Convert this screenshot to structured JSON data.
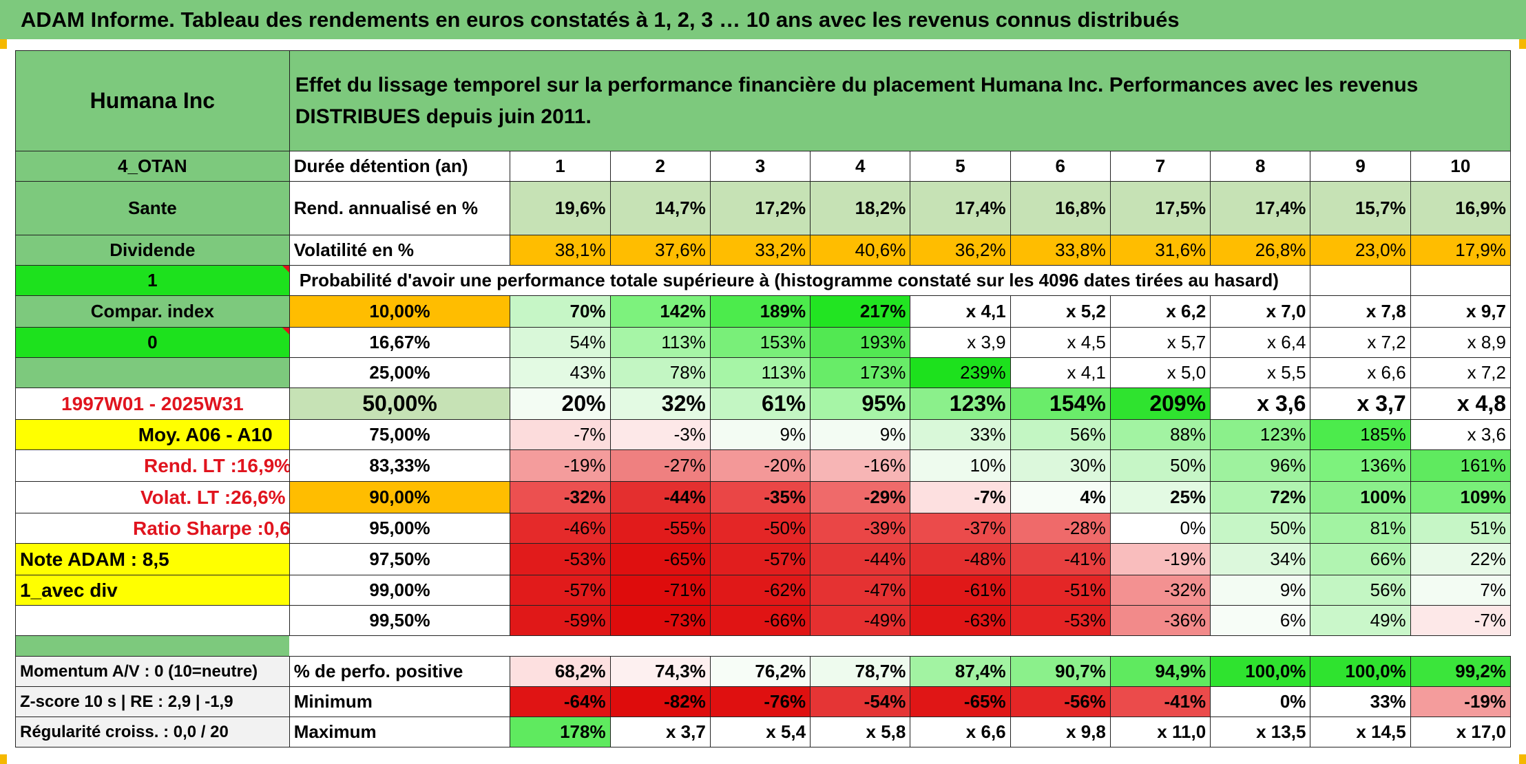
{
  "title": "ADAM Informe. Tableau des rendements en euros constatés à 1, 2, 3 … 10 ans avec les revenus connus distribués",
  "header": {
    "asset_name": "Humana Inc",
    "description": "Effet du lissage temporel sur la performance financière du placement Humana Inc. Performances avec les revenus DISTRIBUES depuis juin 2011."
  },
  "side": {
    "code": "4_OTAN",
    "sector": "Sante",
    "dividend": "Dividende",
    "flag1": "1",
    "compar_index": "Compar. index",
    "flag0": "0",
    "period": "1997W01 - 2025W31",
    "moy": "Moy. A06 - A10",
    "rend_lt_label": "Rend. LT :",
    "rend_lt_value": "16,9%",
    "volat_lt_label": "Volat. LT :",
    "volat_lt_value": "26,6%",
    "sharpe_label": "Ratio Sharpe :",
    "sharpe_value": "0,6",
    "note": "Note ADAM : 8,5",
    "avec_div": "1_avec div",
    "momentum": "Momentum A/V : 0 (10=neutre)",
    "zscore": "Z-score 10 s | RE : 2,9 | -1,9",
    "regularite": "Régularité croiss. : 0,0 / 20"
  },
  "labels": {
    "duree": "Durée détention (an)",
    "rend": "Rend. annualisé en %",
    "volat": "Volatilité en %",
    "proba": "Probabilité d'avoir une performance totale supérieure à (histogramme constaté sur les 4096 dates tirées au hasard)",
    "perf_pos": "% de perfo. positive",
    "minimum": "Minimum",
    "maximum": "Maximum"
  },
  "years": [
    "1",
    "2",
    "3",
    "4",
    "5",
    "6",
    "7",
    "8",
    "9",
    "10"
  ],
  "rend_values": [
    "19,6%",
    "14,7%",
    "17,2%",
    "18,2%",
    "17,4%",
    "16,8%",
    "17,5%",
    "17,4%",
    "15,7%",
    "16,9%"
  ],
  "volat_values": [
    "38,1%",
    "37,6%",
    "33,2%",
    "40,6%",
    "36,2%",
    "33,8%",
    "31,6%",
    "26,8%",
    "23,0%",
    "17,9%"
  ],
  "quantiles": [
    {
      "q": "10,00%",
      "values": [
        "70%",
        "142%",
        "189%",
        "217%",
        "x 4,1",
        "x 5,2",
        "x 6,2",
        "x 7,0",
        "x 7,8",
        "x 9,7"
      ]
    },
    {
      "q": "16,67%",
      "values": [
        "54%",
        "113%",
        "153%",
        "193%",
        "x 3,9",
        "x 4,5",
        "x 5,7",
        "x 6,4",
        "x 7,2",
        "x 8,9"
      ]
    },
    {
      "q": "25,00%",
      "values": [
        "43%",
        "78%",
        "113%",
        "173%",
        "239%",
        "x 4,1",
        "x 5,0",
        "x 5,5",
        "x 6,6",
        "x 7,2"
      ]
    },
    {
      "q": "50,00%",
      "values": [
        "20%",
        "32%",
        "61%",
        "95%",
        "123%",
        "154%",
        "209%",
        "x 3,6",
        "x 3,7",
        "x 4,8"
      ]
    },
    {
      "q": "75,00%",
      "values": [
        "-7%",
        "-3%",
        "9%",
        "9%",
        "33%",
        "56%",
        "88%",
        "123%",
        "185%",
        "x 3,6"
      ]
    },
    {
      "q": "83,33%",
      "values": [
        "-19%",
        "-27%",
        "-20%",
        "-16%",
        "10%",
        "30%",
        "50%",
        "96%",
        "136%",
        "161%"
      ]
    },
    {
      "q": "90,00%",
      "values": [
        "-32%",
        "-44%",
        "-35%",
        "-29%",
        "-7%",
        "4%",
        "25%",
        "72%",
        "100%",
        "109%"
      ]
    },
    {
      "q": "95,00%",
      "values": [
        "-46%",
        "-55%",
        "-50%",
        "-39%",
        "-37%",
        "-28%",
        "0%",
        "50%",
        "81%",
        "51%"
      ]
    },
    {
      "q": "97,50%",
      "values": [
        "-53%",
        "-65%",
        "-57%",
        "-44%",
        "-48%",
        "-41%",
        "-19%",
        "34%",
        "66%",
        "22%"
      ]
    },
    {
      "q": "99,00%",
      "values": [
        "-57%",
        "-71%",
        "-62%",
        "-47%",
        "-61%",
        "-51%",
        "-32%",
        "9%",
        "56%",
        "7%"
      ]
    },
    {
      "q": "99,50%",
      "values": [
        "-59%",
        "-73%",
        "-66%",
        "-49%",
        "-63%",
        "-53%",
        "-36%",
        "6%",
        "49%",
        "-7%"
      ]
    }
  ],
  "perf_pos_values": [
    "68,2%",
    "74,3%",
    "76,2%",
    "78,7%",
    "87,4%",
    "90,7%",
    "94,9%",
    "100,0%",
    "100,0%",
    "99,2%"
  ],
  "minimum_values": [
    "-64%",
    "-82%",
    "-76%",
    "-54%",
    "-65%",
    "-56%",
    "-41%",
    "0%",
    "33%",
    "-19%"
  ],
  "maximum_values": [
    "178%",
    "x 3,7",
    "x 5,4",
    "x 5,8",
    "x 6,6",
    "x 9,8",
    "x 11,0",
    "x 13,5",
    "x 14,5",
    "x 17,0"
  ],
  "colors": {
    "header_green": "#7dc97d",
    "light_green": "#c6e2b5",
    "bright_green": "#1de11d",
    "orange": "#ffbd00",
    "yellow": "#ffff00",
    "label_red": "#e0141e"
  },
  "cell_colors": {
    "quantiles": [
      [
        "#c6f6c6",
        "#7df27d",
        "#4ceb4c",
        "#22e422",
        "#fff",
        "#fff",
        "#fff",
        "#fff",
        "#fff",
        "#fff"
      ],
      [
        "#d9f8d9",
        "#a6f5a6",
        "#79ef79",
        "#52e852",
        "#fff",
        "#fff",
        "#fff",
        "#fff",
        "#fff",
        "#fff"
      ],
      [
        "#e3fae3",
        "#c3f6c3",
        "#a6f5a6",
        "#68ec68",
        "#1de11d",
        "#fff",
        "#fff",
        "#fff",
        "#fff",
        "#fff"
      ],
      [
        "#f3fcf3",
        "#e3fae3",
        "#c3f6c3",
        "#a6f5a6",
        "#8bf08b",
        "#6aec6a",
        "#2fe32f",
        "#fff",
        "#fff",
        "#fff"
      ],
      [
        "#fcdcdc",
        "#fde8e8",
        "#f3fcf3",
        "#f3fcf3",
        "#d9f8d9",
        "#c3f6c3",
        "#a2f3a2",
        "#8bf08b",
        "#4ceb4c",
        "#fff"
      ],
      [
        "#f49c9c",
        "#ef8080",
        "#f39898",
        "#f7b5b5",
        "#eefbee",
        "#dcf8dc",
        "#c6f6c6",
        "#9ef29e",
        "#7df27d",
        "#5fea5f"
      ],
      [
        "#ec5050",
        "#e42f2f",
        "#ea4646",
        "#ef6a6a",
        "#fde0e0",
        "#f7fdf7",
        "#e3fae3",
        "#b1f4b1",
        "#8bf08b",
        "#79ef79"
      ],
      [
        "#e52a2a",
        "#e11b1b",
        "#e42626",
        "#ea4646",
        "#eb4b4b",
        "#ef6a6a",
        "#ffffff",
        "#c6f6c6",
        "#a2f3a2",
        "#c6f6c6"
      ],
      [
        "#e11b1b",
        "#df1010",
        "#e11e1e",
        "#e53535",
        "#e42f2f",
        "#e84040",
        "#f9bdbd",
        "#dcf8dc",
        "#b1f4b1",
        "#e8fae8"
      ],
      [
        "#e11b1b",
        "#de0c0c",
        "#e01818",
        "#e53232",
        "#e01818",
        "#e42626",
        "#f39191",
        "#f3fcf3",
        "#c3f6c3",
        "#f3fcf3"
      ],
      [
        "#e01818",
        "#de0c0c",
        "#e01414",
        "#e53030",
        "#e01616",
        "#e42424",
        "#f28a8a",
        "#f7fdf7",
        "#caf7ca",
        "#fde8e8"
      ]
    ],
    "perf_pos": [
      "#fde0e0",
      "#fdf0f0",
      "#f7fdf7",
      "#eefbee",
      "#a2f3a2",
      "#8bf08b",
      "#5fea5f",
      "#2fe32f",
      "#2fe32f",
      "#3be53b"
    ],
    "minimum": [
      "#e01414",
      "#de0c0c",
      "#df1010",
      "#e53535",
      "#e01616",
      "#e42626",
      "#eb4b4b",
      "#ffffff",
      "#ffffff",
      "#f49c9c"
    ],
    "maximum": [
      "#5fea5f",
      "#fff",
      "#fff",
      "#fff",
      "#fff",
      "#fff",
      "#fff",
      "#fff",
      "#fff",
      "#fff"
    ]
  }
}
